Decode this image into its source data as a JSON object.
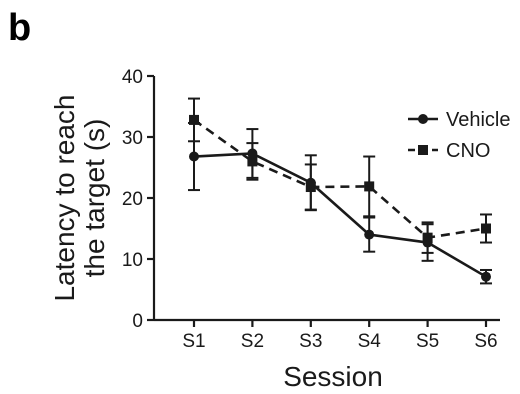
{
  "panel_label": "b",
  "chart_data": {
    "type": "line",
    "categories": [
      "S1",
      "S2",
      "S3",
      "S4",
      "S5",
      "S6"
    ],
    "xlabel": "Session",
    "ylabel_lines": [
      "Latency to reach",
      "the target (s)"
    ],
    "ylim": [
      0,
      40
    ],
    "yticks": [
      0,
      10,
      20,
      30,
      40
    ],
    "grid": false,
    "legend_position": "top-right",
    "series": [
      {
        "name": "Vehicle",
        "marker": "circle",
        "line_style": "solid",
        "values": [
          26.8,
          27.3,
          22.5,
          14.0,
          12.7,
          7.1
        ],
        "error": [
          5.5,
          4.0,
          4.5,
          2.8,
          3.0,
          1.1
        ]
      },
      {
        "name": "CNO",
        "marker": "square",
        "line_style": "dashed",
        "values": [
          32.8,
          26.0,
          21.8,
          21.9,
          13.5,
          15.0
        ],
        "error": [
          3.5,
          3.0,
          3.7,
          4.9,
          2.5,
          2.3
        ]
      }
    ]
  }
}
